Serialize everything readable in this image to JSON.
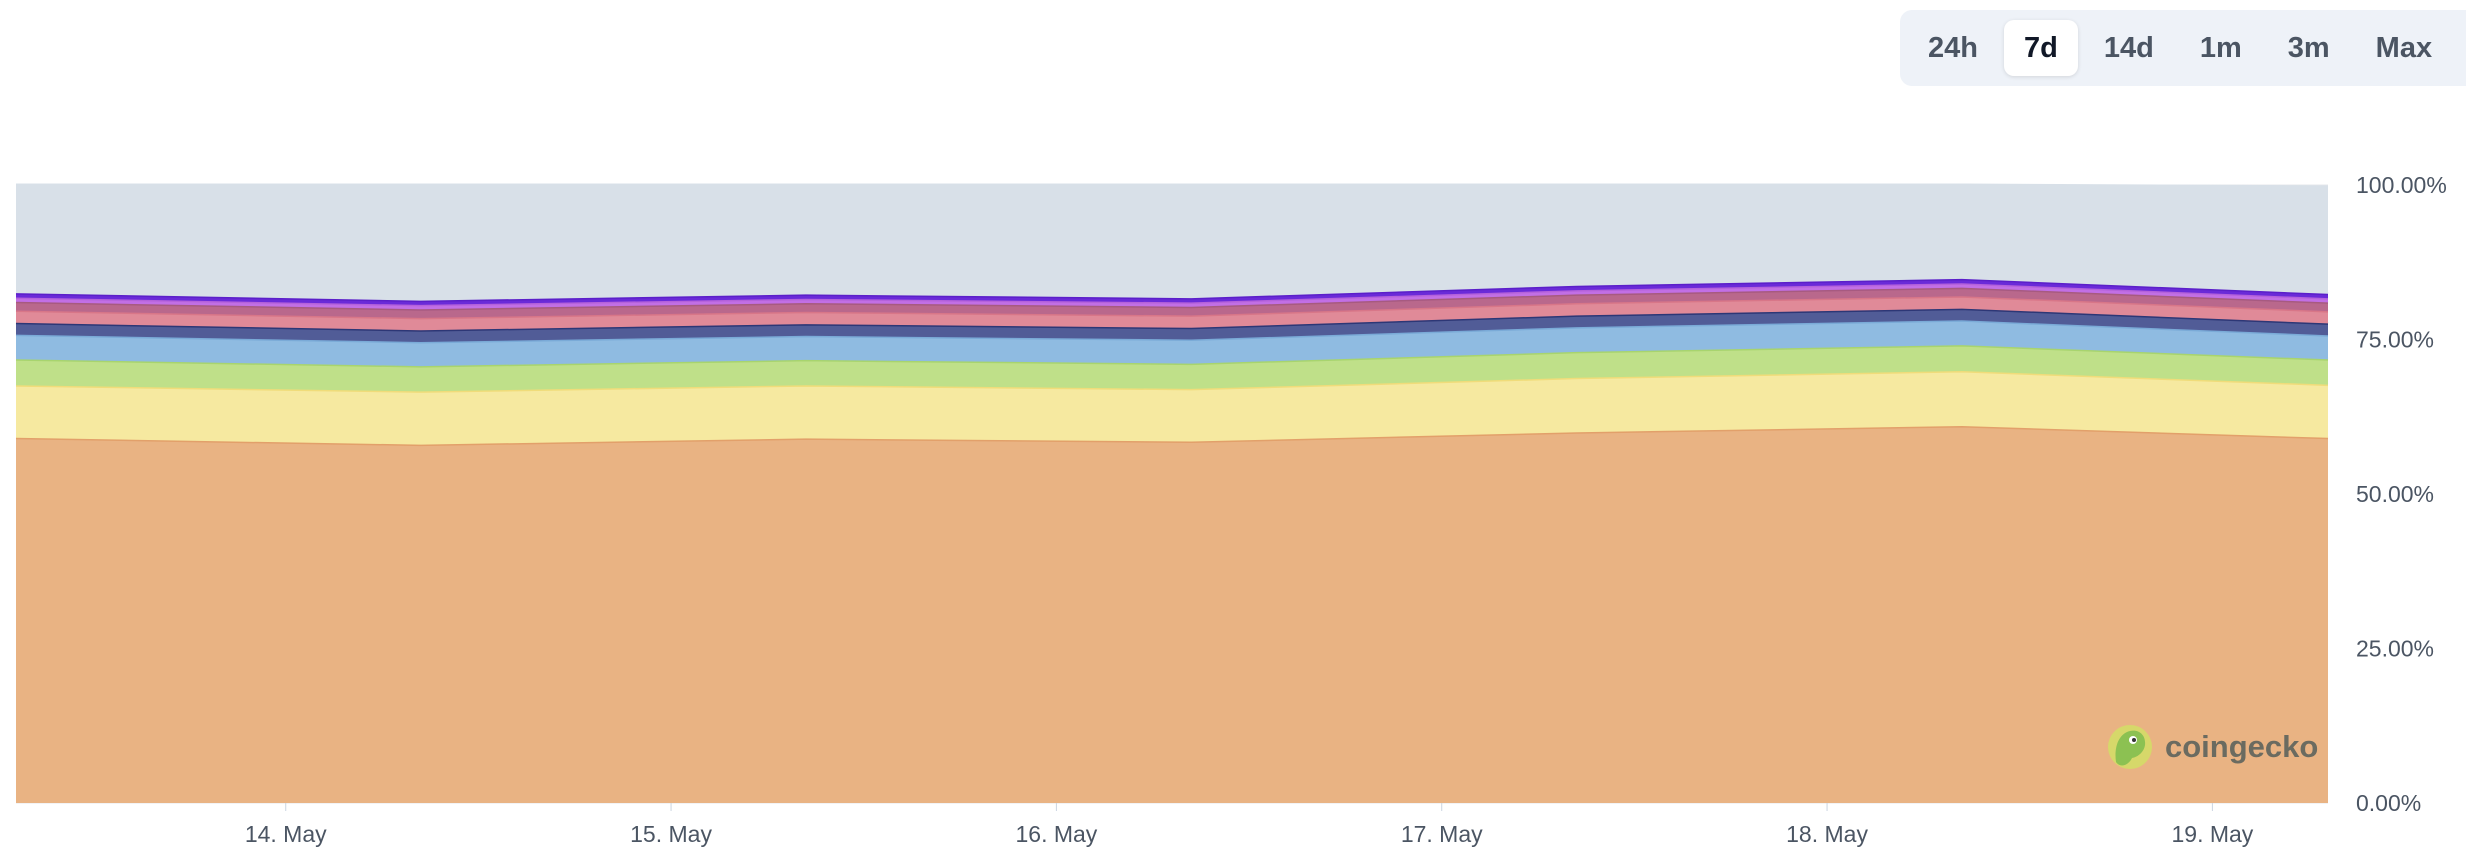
{
  "range_selector": {
    "options": [
      {
        "id": "24h",
        "label": "24h"
      },
      {
        "id": "7d",
        "label": "7d"
      },
      {
        "id": "14d",
        "label": "14d"
      },
      {
        "id": "1m",
        "label": "1m"
      },
      {
        "id": "3m",
        "label": "3m"
      },
      {
        "id": "max",
        "label": "Max"
      }
    ],
    "selected": "7d"
  },
  "watermark": {
    "text": "coingecko"
  },
  "chart_data": {
    "type": "area",
    "stacked": true,
    "title": "",
    "xlabel": "",
    "ylabel": "",
    "ylim": [
      0,
      100
    ],
    "y_ticks": [
      {
        "value": 0,
        "label": "0.00%"
      },
      {
        "value": 25,
        "label": "25.00%"
      },
      {
        "value": 50,
        "label": "50.00%"
      },
      {
        "value": 75,
        "label": "75.00%"
      },
      {
        "value": 100,
        "label": "100.00%"
      }
    ],
    "x_range": [
      13.3,
      19.3
    ],
    "x_ticks": [
      {
        "value": 14,
        "label": "14. May"
      },
      {
        "value": 15,
        "label": "15. May"
      },
      {
        "value": 16,
        "label": "16. May"
      },
      {
        "value": 17,
        "label": "17. May"
      },
      {
        "value": 18,
        "label": "18. May"
      },
      {
        "value": 19,
        "label": "19. May"
      }
    ],
    "x": [
      13.3,
      14.35,
      15.35,
      16.35,
      17.35,
      18.35,
      19.3
    ],
    "legend": "none",
    "grid": true,
    "series": [
      {
        "values": [
          59.1,
          58.0,
          59.0,
          58.5,
          60.0,
          61.0,
          59.1
        ],
        "fill": "#e9b383",
        "stroke": "#e2a06a"
      },
      {
        "values": [
          8.5,
          8.6,
          8.6,
          8.5,
          8.8,
          8.9,
          8.6
        ],
        "fill": "#f6e9a0",
        "stroke": "#f0dc7a"
      },
      {
        "values": [
          4.2,
          4.1,
          4.1,
          4.1,
          4.2,
          4.2,
          4.1
        ],
        "fill": "#bfe089",
        "stroke": "#a8d46e"
      },
      {
        "values": [
          4.0,
          3.9,
          3.9,
          3.9,
          4.0,
          4.0,
          3.9
        ],
        "fill": "#8fbbe1",
        "stroke": "#7aaad7"
      },
      {
        "values": [
          1.9,
          1.9,
          1.9,
          1.9,
          1.9,
          1.9,
          1.9
        ],
        "fill": "#515c97",
        "stroke": "#2d3776"
      },
      {
        "values": [
          2.0,
          2.0,
          2.0,
          2.0,
          2.0,
          2.0,
          2.0
        ],
        "fill": "#e08a98",
        "stroke": "#d87688"
      },
      {
        "values": [
          1.4,
          1.4,
          1.4,
          1.4,
          1.4,
          1.4,
          1.4
        ],
        "fill": "#b9688c",
        "stroke": "#a75a80"
      },
      {
        "values": [
          0.7,
          0.7,
          0.7,
          0.7,
          0.7,
          0.7,
          0.7
        ],
        "fill": "#c26fe5",
        "stroke": "#b462db"
      },
      {
        "values": [
          0.7,
          0.7,
          0.7,
          0.7,
          0.7,
          0.7,
          0.7
        ],
        "fill": "#6a2ad8",
        "stroke": "#5b1fc9"
      },
      {
        "values": [
          17.5,
          18.7,
          17.7,
          18.3,
          16.3,
          15.2,
          17.3
        ],
        "fill": "#d8e0e8",
        "stroke": "#d8e0e8"
      }
    ]
  }
}
